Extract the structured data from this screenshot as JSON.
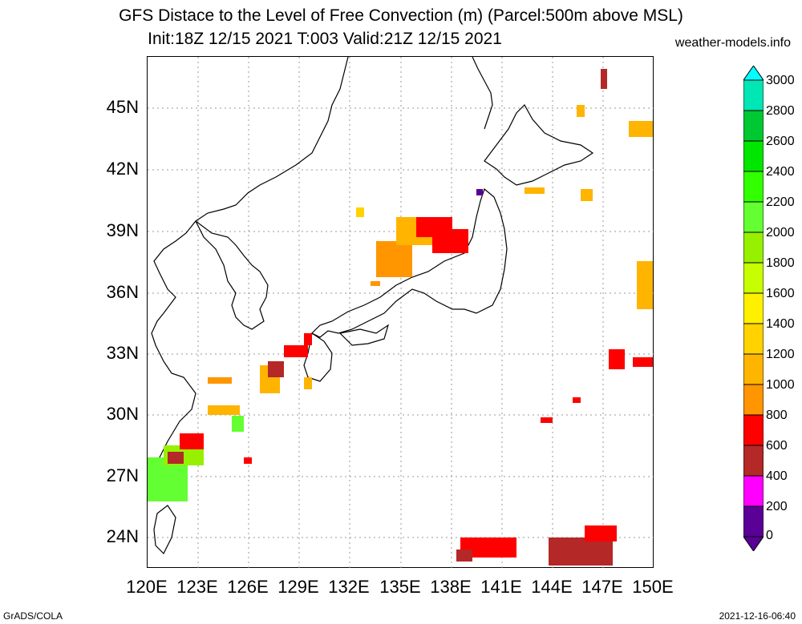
{
  "title": {
    "line1": "GFS Distace to the Level of Free Convection (m) (Parcel:500m above MSL)",
    "line2": "Init:18Z 12/15 2021 T:003 Valid:21Z 12/15 2021",
    "site": "weather-models.info"
  },
  "axes": {
    "lat_labels": [
      "45N",
      "42N",
      "39N",
      "36N",
      "33N",
      "30N",
      "27N",
      "24N"
    ],
    "lon_labels": [
      "120E",
      "123E",
      "126E",
      "129E",
      "132E",
      "135E",
      "138E",
      "141E",
      "144E",
      "147E",
      "150E"
    ]
  },
  "colorbar": {
    "labels": [
      "3000",
      "2800",
      "2600",
      "2400",
      "2200",
      "2000",
      "1800",
      "1600",
      "1400",
      "1200",
      "1000",
      "800",
      "600",
      "400",
      "200",
      "0"
    ],
    "colors": [
      "#00ffff",
      "#00e6b4",
      "#00c832",
      "#00e600",
      "#32ff00",
      "#64ff32",
      "#96f000",
      "#c8ff00",
      "#fff000",
      "#ffd200",
      "#ffb400",
      "#ff9600",
      "#ff0000",
      "#b42828",
      "#ff00ff",
      "#5a0096"
    ]
  },
  "footer": {
    "left": "GrADS/COLA",
    "right": "2021-12-16-06:40"
  }
}
